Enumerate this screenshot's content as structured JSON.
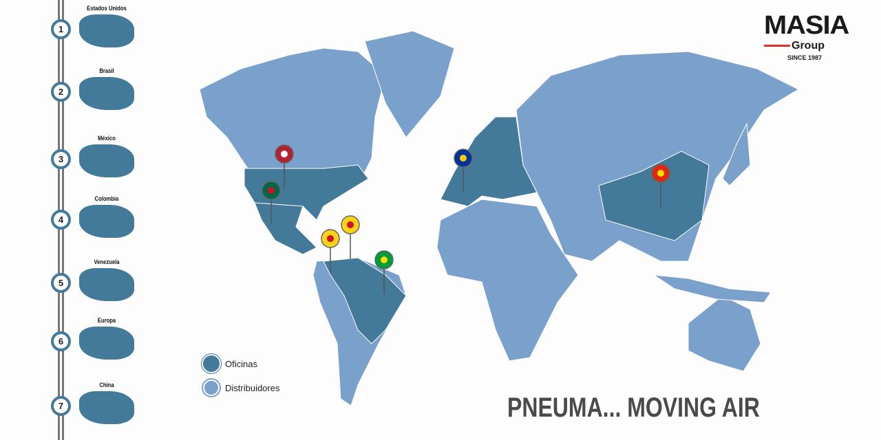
{
  "colors": {
    "offices": "#437a99",
    "distributors": "#7aa0cc",
    "accent": "#d9322b"
  },
  "sidebar": {
    "items": [
      {
        "number": "1",
        "label": "Estados Unidos"
      },
      {
        "number": "2",
        "label": "Brasil"
      },
      {
        "number": "3",
        "label": "México"
      },
      {
        "number": "4",
        "label": "Colombia"
      },
      {
        "number": "5",
        "label": "Venezuela"
      },
      {
        "number": "6",
        "label": "Europa"
      },
      {
        "number": "7",
        "label": "China"
      }
    ]
  },
  "logo": {
    "name": "MASIA",
    "sub": "Group",
    "since": "SINCE 1987"
  },
  "legend": {
    "offices": "Oficinas",
    "distributors": "Distribuidores"
  },
  "slogan": "PNEUMA... MOVING AIR",
  "pins": [
    "us-flag",
    "mexico-flag",
    "colombia-flag",
    "venezuela-flag",
    "brazil-flag",
    "eu-flag",
    "china-flag"
  ]
}
